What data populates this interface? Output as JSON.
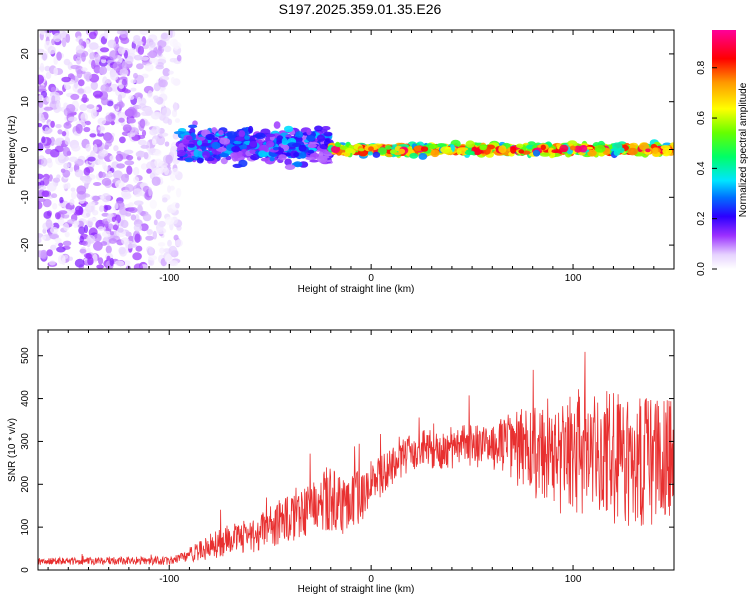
{
  "title": "S197.2025.359.01.35.E26",
  "chart_data": [
    {
      "type": "heatmap",
      "name": "spectrogram",
      "xlabel": "Height of straight line (km)",
      "ylabel": "Frequency (Hz)",
      "xlim": [
        -165,
        150
      ],
      "ylim": [
        -25,
        25
      ],
      "xticks": [
        -100,
        0,
        100
      ],
      "xtick_labels": [
        "-100",
        "0",
        "100"
      ],
      "yticks": [
        20,
        10,
        0,
        -10,
        -20
      ],
      "ytick_labels": [
        "20",
        "10",
        "0",
        "-10",
        "-20"
      ],
      "colorbar": {
        "label": "Normalized spectral amplitude",
        "range": [
          0.0,
          0.95
        ],
        "ticks": [
          0.0,
          0.2,
          0.4,
          0.6,
          0.8
        ],
        "tick_labels": [
          "0.0",
          "0.2",
          "0.4",
          "0.6",
          "0.8"
        ],
        "colormap": "rainbow"
      },
      "regions": [
        {
          "x_range": [
            -165,
            -95
          ],
          "freq_center": 0,
          "freq_spread": 25,
          "amplitude": [
            0.02,
            0.15
          ],
          "description": "diffuse noise"
        },
        {
          "x_range": [
            -95,
            -20
          ],
          "freq_center": 1,
          "freq_spread": 5,
          "amplitude": [
            0.1,
            0.35
          ]
        },
        {
          "x_range": [
            -20,
            150
          ],
          "freq_center": 0,
          "freq_spread": 1.5,
          "amplitude": [
            0.3,
            0.95
          ]
        }
      ]
    },
    {
      "type": "line",
      "name": "snr",
      "xlabel": "Height of straight line (km)",
      "ylabel": "SNR (10 * v/v)",
      "xlim": [
        -165,
        150
      ],
      "ylim": [
        0,
        560
      ],
      "xticks": [
        -100,
        0,
        100
      ],
      "xtick_labels": [
        "-100",
        "0",
        "100"
      ],
      "yticks": [
        0,
        100,
        200,
        300,
        400,
        500
      ],
      "ytick_labels": [
        "0",
        "100",
        "200",
        "300",
        "400",
        "500"
      ],
      "color": "#e83030",
      "trend": [
        {
          "x": -165,
          "y": 20
        },
        {
          "x": -100,
          "y": 22
        },
        {
          "x": -90,
          "y": 35
        },
        {
          "x": -80,
          "y": 55
        },
        {
          "x": -60,
          "y": 80
        },
        {
          "x": -40,
          "y": 120
        },
        {
          "x": -20,
          "y": 170
        },
        {
          "x": -10,
          "y": 150
        },
        {
          "x": 0,
          "y": 200
        },
        {
          "x": 10,
          "y": 250
        },
        {
          "x": 20,
          "y": 280
        },
        {
          "x": 40,
          "y": 285
        },
        {
          "x": 60,
          "y": 290
        },
        {
          "x": 80,
          "y": 280
        },
        {
          "x": 100,
          "y": 270
        },
        {
          "x": 120,
          "y": 260
        },
        {
          "x": 150,
          "y": 250
        }
      ],
      "spread": [
        {
          "x": -165,
          "y": 8
        },
        {
          "x": -95,
          "y": 10
        },
        {
          "x": -80,
          "y": 30
        },
        {
          "x": -40,
          "y": 55
        },
        {
          "x": -20,
          "y": 80
        },
        {
          "x": 0,
          "y": 60
        },
        {
          "x": 20,
          "y": 45
        },
        {
          "x": 60,
          "y": 55
        },
        {
          "x": 80,
          "y": 110
        },
        {
          "x": 100,
          "y": 160
        },
        {
          "x": 150,
          "y": 150
        }
      ]
    }
  ]
}
